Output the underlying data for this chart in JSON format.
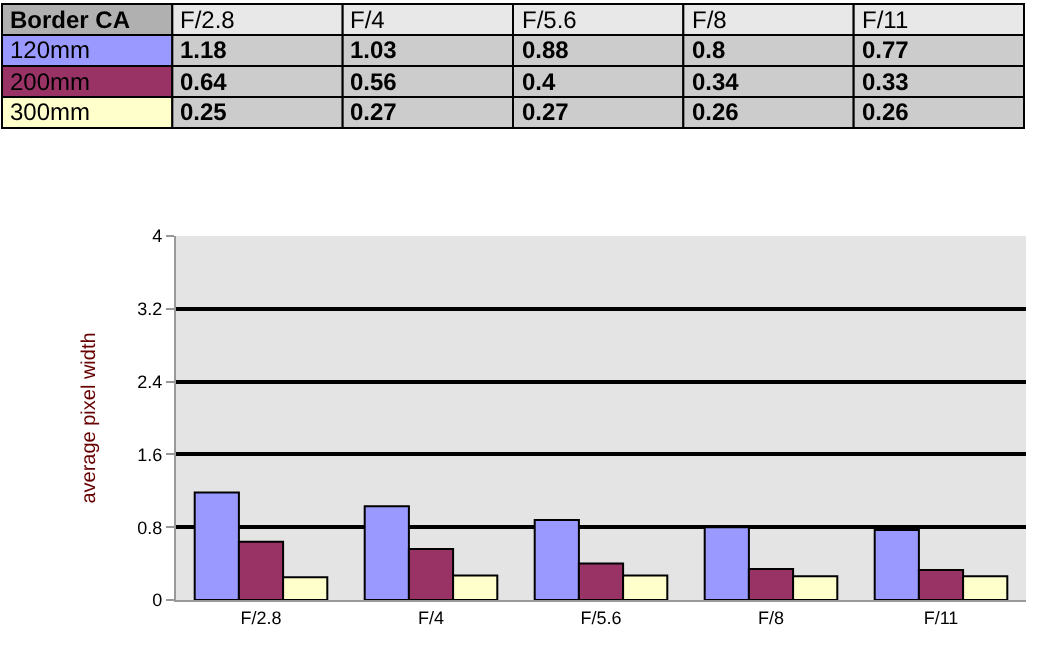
{
  "chart_data": {
    "type": "bar",
    "legend_title": "Border CA",
    "ylabel": "average pixel width",
    "categories": [
      "F/2.8",
      "F/4",
      "F/5.6",
      "F/8",
      "F/11"
    ],
    "series": [
      {
        "name": "120mm",
        "color": "#9999ff",
        "values": [
          1.18,
          1.03,
          0.88,
          0.8,
          0.77
        ]
      },
      {
        "name": "200mm",
        "color": "#993366",
        "values": [
          0.64,
          0.56,
          0.4,
          0.34,
          0.33
        ]
      },
      {
        "name": "300mm",
        "color": "#ffffcc",
        "values": [
          0.25,
          0.27,
          0.27,
          0.26,
          0.26
        ]
      }
    ],
    "ylim": [
      0,
      4
    ],
    "yticks": [
      0,
      0.8,
      1.6,
      2.4,
      3.2,
      4
    ],
    "grid": "y",
    "data_labels": true
  }
}
